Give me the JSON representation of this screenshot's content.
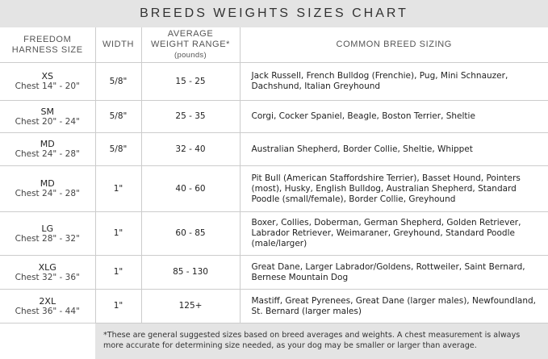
{
  "title": "BREEDS WEIGHTS SIZES CHART",
  "headers": {
    "size_line1": "FREEDOM",
    "size_line2": "HARNESS SIZE",
    "width": "WIDTH",
    "weight_line1": "AVERAGE",
    "weight_line2": "WEIGHT RANGE*",
    "weight_unit": "(pounds)",
    "breeds": "COMMON BREED SIZING"
  },
  "rows": [
    {
      "size": "XS",
      "chest": "Chest 14\" - 20\"",
      "width": "5/8\"",
      "weight": "15 - 25",
      "breeds": "Jack Russell, French Bulldog (Frenchie), Pug, Mini Schnauzer, Dachshund, Italian Greyhound"
    },
    {
      "size": "SM",
      "chest": "Chest 20\" - 24\"",
      "width": "5/8\"",
      "weight": "25 - 35",
      "breeds": "Corgi, Cocker Spaniel, Beagle, Boston Terrier, Sheltie"
    },
    {
      "size": "MD",
      "chest": "Chest 24\" - 28\"",
      "width": "5/8\"",
      "weight": "32 - 40",
      "breeds": "Australian Shepherd, Border Collie, Sheltie, Whippet"
    },
    {
      "size": "MD",
      "chest": "Chest 24\" - 28\"",
      "width": "1\"",
      "weight": "40 - 60",
      "breeds": "Pit Bull (American Staffordshire Terrier), Basset Hound, Pointers (most), Husky, English Bulldog, Australian Shepherd, Standard Poodle (small/female), Border Collie, Greyhound"
    },
    {
      "size": "LG",
      "chest": "Chest 28\" - 32\"",
      "width": "1\"",
      "weight": "60 - 85",
      "breeds": "Boxer, Collies, Doberman, German Shepherd, Golden Retriever, Labrador Retriever, Weimaraner, Greyhound, Standard Poodle (male/larger)"
    },
    {
      "size": "XLG",
      "chest": "Chest 32\" - 36\"",
      "width": "1\"",
      "weight": "85 - 130",
      "breeds": "Great Dane, Larger Labrador/Goldens, Rottweiler, Saint Bernard, Bernese Mountain Dog"
    },
    {
      "size": "2XL",
      "chest": "Chest 36\" - 44\"",
      "width": "1\"",
      "weight": "125+",
      "breeds": "Mastiff, Great Pyrenees, Great Dane (larger males), Newfoundland, St. Bernard (larger males)"
    }
  ],
  "footnote": "*These are general suggested sizes based on breed averages and weights.  A chest measurement is always more accurate for determining size needed, as your dog may be smaller or larger than average."
}
